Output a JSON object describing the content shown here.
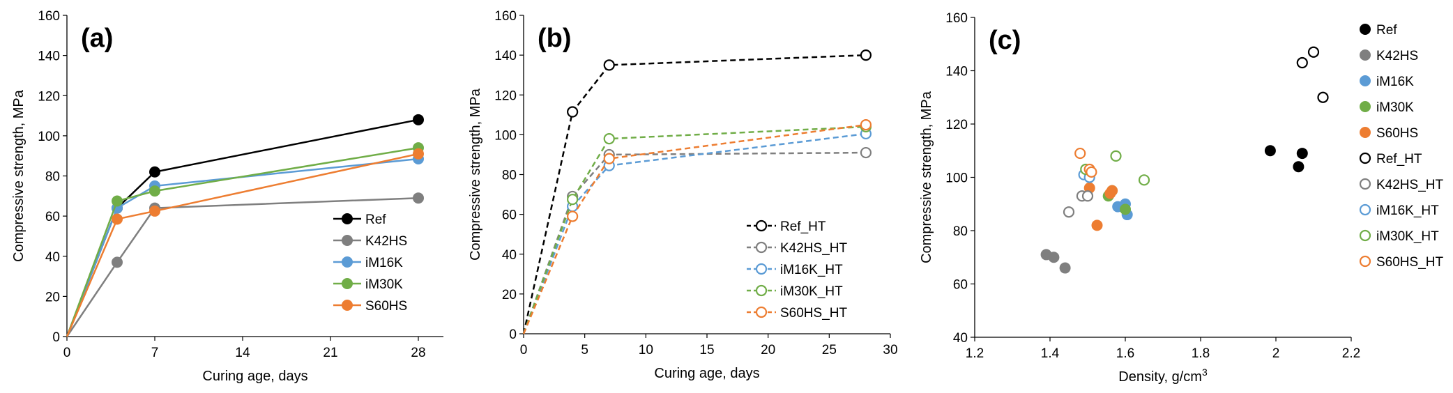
{
  "chart_data": [
    {
      "type": "line",
      "panel_label": "(a)",
      "xlabel": "Curing age, days",
      "ylabel": "Compressive strength, MPa",
      "xlim": [
        0,
        30
      ],
      "ylim": [
        0,
        160
      ],
      "xticks": [
        0,
        7,
        14,
        21,
        28
      ],
      "yticks": [
        0,
        20,
        40,
        60,
        80,
        100,
        120,
        140,
        160
      ],
      "grid": false,
      "legend_position": "bottom-right",
      "series": [
        {
          "name": "Ref",
          "color": "#000000",
          "marker": "filled",
          "dash": false,
          "x": [
            0,
            4,
            7,
            28
          ],
          "y": [
            0,
            64,
            82,
            108
          ]
        },
        {
          "name": "K42HS",
          "color": "#7f7f7f",
          "marker": "filled",
          "dash": false,
          "x": [
            0,
            4,
            7,
            28
          ],
          "y": [
            0,
            37,
            64,
            69
          ]
        },
        {
          "name": "iM16K",
          "color": "#5b9bd5",
          "marker": "filled",
          "dash": false,
          "x": [
            0,
            4,
            7,
            28
          ],
          "y": [
            0,
            64,
            75,
            88.5
          ]
        },
        {
          "name": "iM30K",
          "color": "#70ad47",
          "marker": "filled",
          "dash": false,
          "x": [
            0,
            4,
            7,
            28
          ],
          "y": [
            0,
            67.5,
            72.5,
            94
          ]
        },
        {
          "name": "S60HS",
          "color": "#ed7d31",
          "marker": "filled",
          "dash": false,
          "x": [
            0,
            4,
            7,
            28
          ],
          "y": [
            0,
            58.5,
            62.5,
            91
          ]
        }
      ]
    },
    {
      "type": "line",
      "panel_label": "(b)",
      "xlabel": "Curing age, days",
      "ylabel": "Compressive strength, MPa",
      "xlim": [
        0,
        30
      ],
      "ylim": [
        0,
        160
      ],
      "xticks": [
        0,
        5,
        10,
        15,
        20,
        25,
        30
      ],
      "yticks": [
        0,
        20,
        40,
        60,
        80,
        100,
        120,
        140,
        160
      ],
      "grid": false,
      "legend_position": "bottom-right",
      "series": [
        {
          "name": "Ref_HT",
          "color": "#000000",
          "marker": "open",
          "dash": true,
          "x": [
            0,
            4,
            7,
            28
          ],
          "y": [
            0,
            111.5,
            135,
            140
          ]
        },
        {
          "name": "K42HS_HT",
          "color": "#7f7f7f",
          "marker": "open",
          "dash": true,
          "x": [
            0,
            4,
            7,
            28
          ],
          "y": [
            0,
            69,
            90,
            91
          ]
        },
        {
          "name": "iM16K_HT",
          "color": "#5b9bd5",
          "marker": "open",
          "dash": true,
          "x": [
            0,
            4,
            7,
            28
          ],
          "y": [
            0,
            64,
            84.5,
            100.5
          ]
        },
        {
          "name": "iM30K_HT",
          "color": "#70ad47",
          "marker": "open",
          "dash": true,
          "x": [
            0,
            4,
            7,
            28
          ],
          "y": [
            0,
            67.5,
            98,
            104
          ]
        },
        {
          "name": "S60HS_HT",
          "color": "#ed7d31",
          "marker": "open",
          "dash": true,
          "x": [
            0,
            4,
            7,
            28
          ],
          "y": [
            0,
            59,
            88,
            105
          ]
        }
      ]
    },
    {
      "type": "scatter",
      "panel_label": "(c)",
      "xlabel": "Density, g/cm",
      "xlabel_sup": "3",
      "ylabel": "Compressive strength, MPa",
      "xlim": [
        1.2,
        2.2
      ],
      "ylim": [
        40,
        160
      ],
      "xticks": [
        "1.2",
        "1.4",
        "1.6",
        "1.8",
        "2",
        "2.2"
      ],
      "yticks": [
        40,
        60,
        80,
        100,
        120,
        140,
        160
      ],
      "grid": false,
      "legend_position": "right",
      "series": [
        {
          "name": "Ref",
          "color": "#000000",
          "marker": "filled",
          "x": [
            1.985,
            2.06,
            2.07
          ],
          "y": [
            110,
            104,
            109
          ]
        },
        {
          "name": "K42HS",
          "color": "#7f7f7f",
          "marker": "filled",
          "x": [
            1.39,
            1.41,
            1.44
          ],
          "y": [
            71,
            70,
            66
          ]
        },
        {
          "name": "iM16K",
          "color": "#5b9bd5",
          "marker": "filled",
          "x": [
            1.58,
            1.6,
            1.605
          ],
          "y": [
            89,
            90,
            86
          ]
        },
        {
          "name": "iM30K",
          "color": "#70ad47",
          "marker": "filled",
          "x": [
            1.555,
            1.565,
            1.6
          ],
          "y": [
            93,
            95,
            88
          ]
        },
        {
          "name": "S60HS",
          "color": "#ed7d31",
          "marker": "filled",
          "x": [
            1.505,
            1.525,
            1.56,
            1.565
          ],
          "y": [
            96,
            82,
            94,
            95
          ]
        },
        {
          "name": "Ref_HT",
          "color": "#000000",
          "marker": "open",
          "x": [
            2.07,
            2.1,
            2.125
          ],
          "y": [
            143,
            147,
            130
          ]
        },
        {
          "name": "K42HS_HT",
          "color": "#7f7f7f",
          "marker": "open",
          "x": [
            1.45,
            1.485,
            1.5
          ],
          "y": [
            87,
            93,
            93
          ]
        },
        {
          "name": "iM16K_HT",
          "color": "#5b9bd5",
          "marker": "open",
          "x": [
            1.49,
            1.505
          ],
          "y": [
            101,
            100
          ]
        },
        {
          "name": "iM30K_HT",
          "color": "#70ad47",
          "marker": "open",
          "x": [
            1.495,
            1.575,
            1.65
          ],
          "y": [
            103,
            108,
            99
          ]
        },
        {
          "name": "S60HS_HT",
          "color": "#ed7d31",
          "marker": "open",
          "x": [
            1.48,
            1.505,
            1.51
          ],
          "y": [
            109,
            103,
            102
          ]
        }
      ]
    }
  ]
}
